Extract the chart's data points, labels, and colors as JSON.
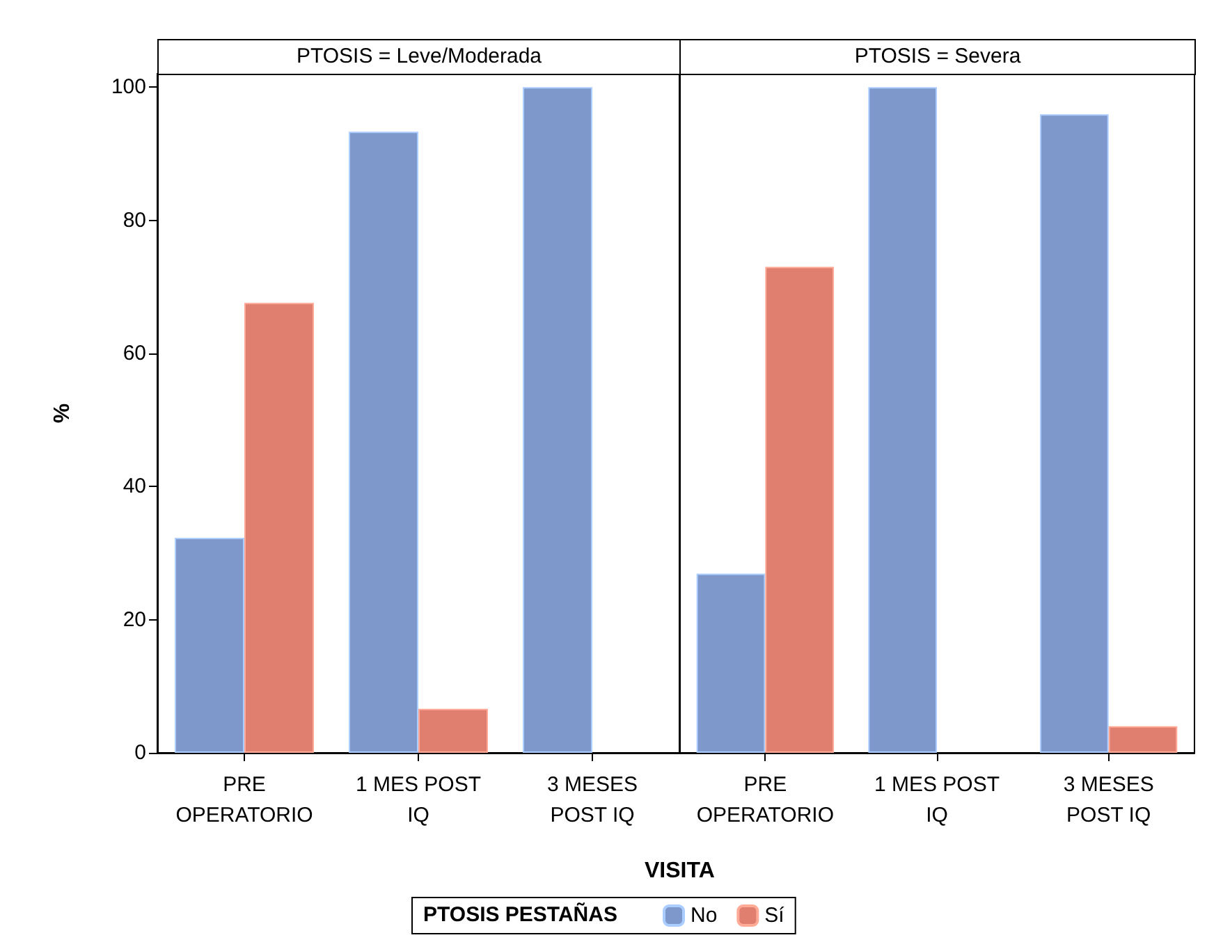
{
  "chart_data": [
    {
      "type": "bar",
      "title": "PTOSIS = Leve/Moderada",
      "ylabel": "%",
      "xlabel": "VISITA",
      "legend_title": "PTOSIS PESTAÑAS",
      "legend": "bottom",
      "categories": [
        "PRE\nOPERATORIO",
        "1 MES POST\nIQ",
        "3 MESES\nPOST IQ"
      ],
      "ylim": [
        0,
        102
      ],
      "yticks": [
        0,
        20,
        40,
        60,
        80,
        100
      ],
      "series": [
        {
          "name": "No",
          "color": "#7f98cc",
          "values": [
            32.3,
            93.3,
            100
          ]
        },
        {
          "name": "Sí",
          "color": "#e07f70",
          "values": [
            67.6,
            6.6,
            null
          ]
        }
      ]
    },
    {
      "type": "bar",
      "title": "PTOSIS = Severa",
      "categories": [
        "PRE\nOPERATORIO",
        "1 MES POST\nIQ",
        "3 MESES\nPOST IQ"
      ],
      "ylim": [
        0,
        102
      ],
      "yticks": [
        0,
        20,
        40,
        60,
        80,
        100
      ],
      "tick_labels": "x",
      "series": [
        {
          "color": "#7f98cc",
          "values": [
            26.9,
            100,
            95.9
          ]
        },
        {
          "color": "#e07f70",
          "values": [
            73,
            null,
            4
          ]
        }
      ]
    }
  ]
}
